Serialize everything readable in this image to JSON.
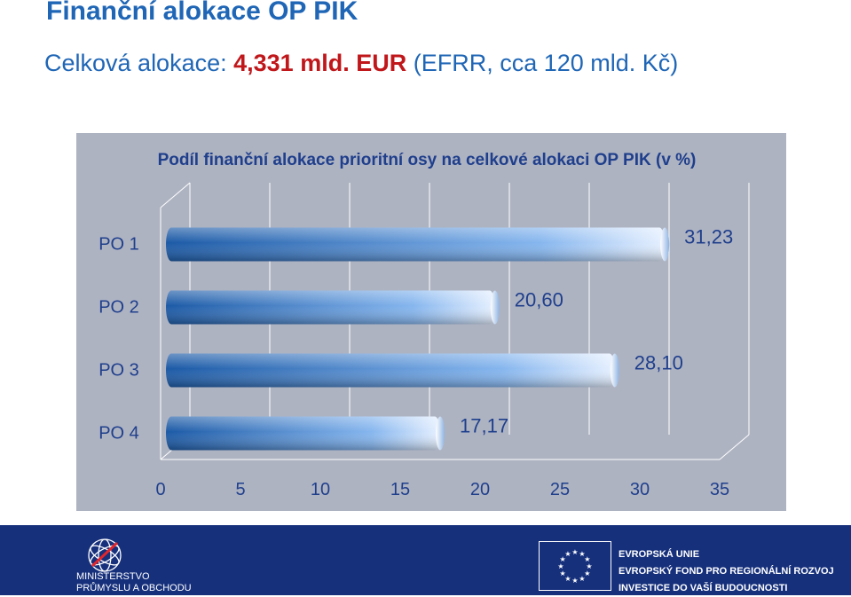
{
  "header": {
    "title": "Finanční alokace OP PIK",
    "subtitle_prefix": "Celková alokace: ",
    "subtitle_highlight": "4,331 mld. EUR",
    "subtitle_suffix": " (EFRR, cca 120 mld. Kč)"
  },
  "chart_data": {
    "type": "bar",
    "orientation": "horizontal",
    "title": "Podíl finanční alokace prioritní osy na celkové alokaci OP PIK (v %)",
    "categories": [
      "PO 1",
      "PO 2",
      "PO 3",
      "PO 4"
    ],
    "values": [
      31.23,
      20.6,
      28.1,
      17.17
    ],
    "data_labels": [
      "31,23",
      "20,60",
      "28,10",
      "17,17"
    ],
    "xlim": [
      0,
      35
    ],
    "x_ticks": [
      "0",
      "5",
      "10",
      "15",
      "20",
      "25",
      "30",
      "35"
    ],
    "grid": true,
    "colors": {
      "panel": "#aeb3c2",
      "bar_dark": "#1c5aa6",
      "bar_light": "#e6f0ff",
      "text": "#1f3f8c"
    }
  },
  "footer": {
    "ministry_line1": "MINISTERSTVO",
    "ministry_line2": "PRŮMYSLU A OBCHODU",
    "eu_line1": "EVROPSKÁ UNIE",
    "eu_line2": "EVROPSKÝ FOND PRO REGIONÁLNÍ ROZVOJ",
    "eu_line3": "INVESTICE DO VAŠÍ BUDOUCNOSTI",
    "background_color": "#16307c"
  }
}
